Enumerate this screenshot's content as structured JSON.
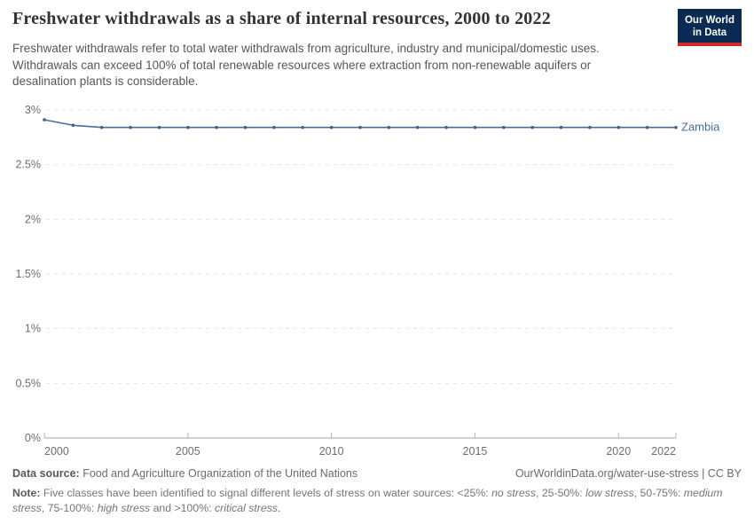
{
  "header": {
    "title": "Freshwater withdrawals as a share of internal resources, 2000 to 2022",
    "subtitle": "Freshwater withdrawals refer to total water withdrawals from agriculture, industry and municipal/domestic uses. Withdrawals can exceed 100% of total renewable resources where extraction from non-renewable aquifers or desalination plants is considerable.",
    "logo": {
      "line1": "Our World",
      "line2": "in Data",
      "background_color": "#0a2b51",
      "accent_color": "#ce2a27"
    }
  },
  "chart_data": {
    "type": "line",
    "title": "Freshwater withdrawals as a share of internal resources, 2000 to 2022",
    "xlabel": "",
    "ylabel": "",
    "xlim": [
      2000,
      2022
    ],
    "ylim": [
      0,
      3
    ],
    "grid": "horizontal-dashed",
    "grid_color": "#e2e2e2",
    "axis_color": "#a3a3a3",
    "tick_label_color": "#6e6e6e",
    "legend_position": "end-of-line-label",
    "y_ticks": [
      {
        "value": 0,
        "label": "0%"
      },
      {
        "value": 0.5,
        "label": "0.5%"
      },
      {
        "value": 1,
        "label": "1%"
      },
      {
        "value": 1.5,
        "label": "1.5%"
      },
      {
        "value": 2,
        "label": "2%"
      },
      {
        "value": 2.5,
        "label": "2.5%"
      },
      {
        "value": 3,
        "label": "3%"
      }
    ],
    "x_ticks": [
      {
        "value": 2000,
        "label": "2000",
        "anchor": "start"
      },
      {
        "value": 2005,
        "label": "2005",
        "anchor": "middle"
      },
      {
        "value": 2010,
        "label": "2010",
        "anchor": "middle"
      },
      {
        "value": 2015,
        "label": "2015",
        "anchor": "middle"
      },
      {
        "value": 2020,
        "label": "2020",
        "anchor": "middle"
      },
      {
        "value": 2022,
        "label": "2022",
        "anchor": "end"
      }
    ],
    "series": [
      {
        "name": "Zambia",
        "color": "#4C6A9C",
        "dot_color": "#44618F",
        "x": [
          2000,
          2001,
          2002,
          2003,
          2004,
          2005,
          2006,
          2007,
          2008,
          2009,
          2010,
          2011,
          2012,
          2013,
          2014,
          2015,
          2016,
          2017,
          2018,
          2019,
          2020,
          2021,
          2022
        ],
        "values": [
          2.91,
          2.86,
          2.84,
          2.84,
          2.84,
          2.84,
          2.84,
          2.84,
          2.84,
          2.84,
          2.84,
          2.84,
          2.84,
          2.84,
          2.84,
          2.84,
          2.84,
          2.84,
          2.84,
          2.84,
          2.84,
          2.84,
          2.84
        ]
      }
    ]
  },
  "footer": {
    "data_source_segments": [
      {
        "text": "Data source: ",
        "bold": true
      },
      {
        "text": "Food and Agriculture Organization of the United Nations"
      }
    ],
    "link": "OurWorldinData.org/water-use-stress | CC BY",
    "note_segments": [
      {
        "text": "Note: ",
        "bold": true
      },
      {
        "text": "Five classes have been identified to signal different levels of stress on water sources: <25%: "
      },
      {
        "text": "no stress",
        "italic": true
      },
      {
        "text": ", 25-50%: "
      },
      {
        "text": "low stress",
        "italic": true
      },
      {
        "text": ", 50-75%: "
      },
      {
        "text": "medium stress",
        "italic": true
      },
      {
        "text": ", 75-100%: "
      },
      {
        "text": "high stress",
        "italic": true
      },
      {
        "text": " and >100%: "
      },
      {
        "text": "critical stress",
        "italic": true
      },
      {
        "text": "."
      }
    ]
  }
}
